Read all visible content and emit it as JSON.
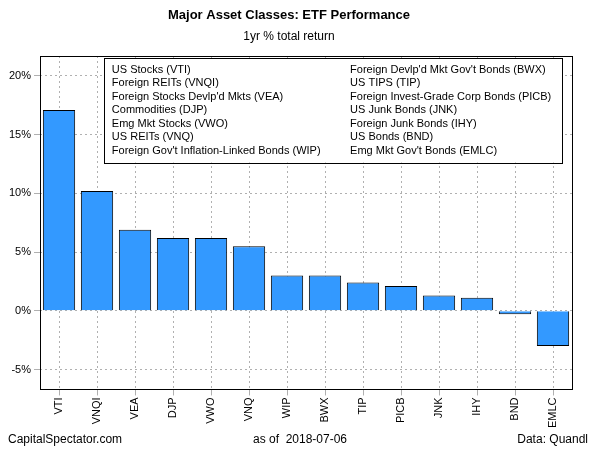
{
  "chart_data": {
    "type": "bar",
    "title": "Major Asset Classes: ETF Performance",
    "subtitle": "1yr % total return",
    "categories": [
      "VTI",
      "VNQI",
      "VEA",
      "DJP",
      "VWO",
      "VNQ",
      "WIP",
      "BWX",
      "TIP",
      "PICB",
      "JNK",
      "IHY",
      "BND",
      "EMLC"
    ],
    "values": [
      17.1,
      10.2,
      6.9,
      6.2,
      6.2,
      5.5,
      3.0,
      3.0,
      2.4,
      2.1,
      1.3,
      1.1,
      -0.3,
      -3.0
    ],
    "color": "#3399ff",
    "ylim": [
      -6.7,
      21.7
    ],
    "yticks": [
      {
        "value": -5,
        "label": "-5%"
      },
      {
        "value": 0,
        "label": "0%"
      },
      {
        "value": 5,
        "label": "5%"
      },
      {
        "value": 10,
        "label": "10%"
      },
      {
        "value": 15,
        "label": "15%"
      },
      {
        "value": 20,
        "label": "20%"
      }
    ],
    "grid": true,
    "annotations": [
      "US Stocks (VTI)",
      "Foreign REITs (VNQI)",
      "Foreign Stocks Devlp'd Mkts (VEA)",
      "Commodities (DJP)",
      "Emg Mkt Stocks (VWO)",
      "US REITs (VNQ)",
      "Foreign Gov't Inflation-Linked Bonds (WIP)",
      "Foreign Devlp'd Mkt Gov't Bonds (BWX)",
      "US TIPS (TIP)",
      "Foreign Invest-Grade Corp Bonds (PICB)",
      "US Junk Bonds (JNK)",
      "Foreign Junk Bonds (IHY)",
      "US Bonds (BND)",
      "Emg Mkt Gov't Bonds (EMLC)"
    ],
    "footer": [
      "CapitalSpectator.com",
      "as of  2018-07-06",
      "Data: Quandl"
    ]
  }
}
